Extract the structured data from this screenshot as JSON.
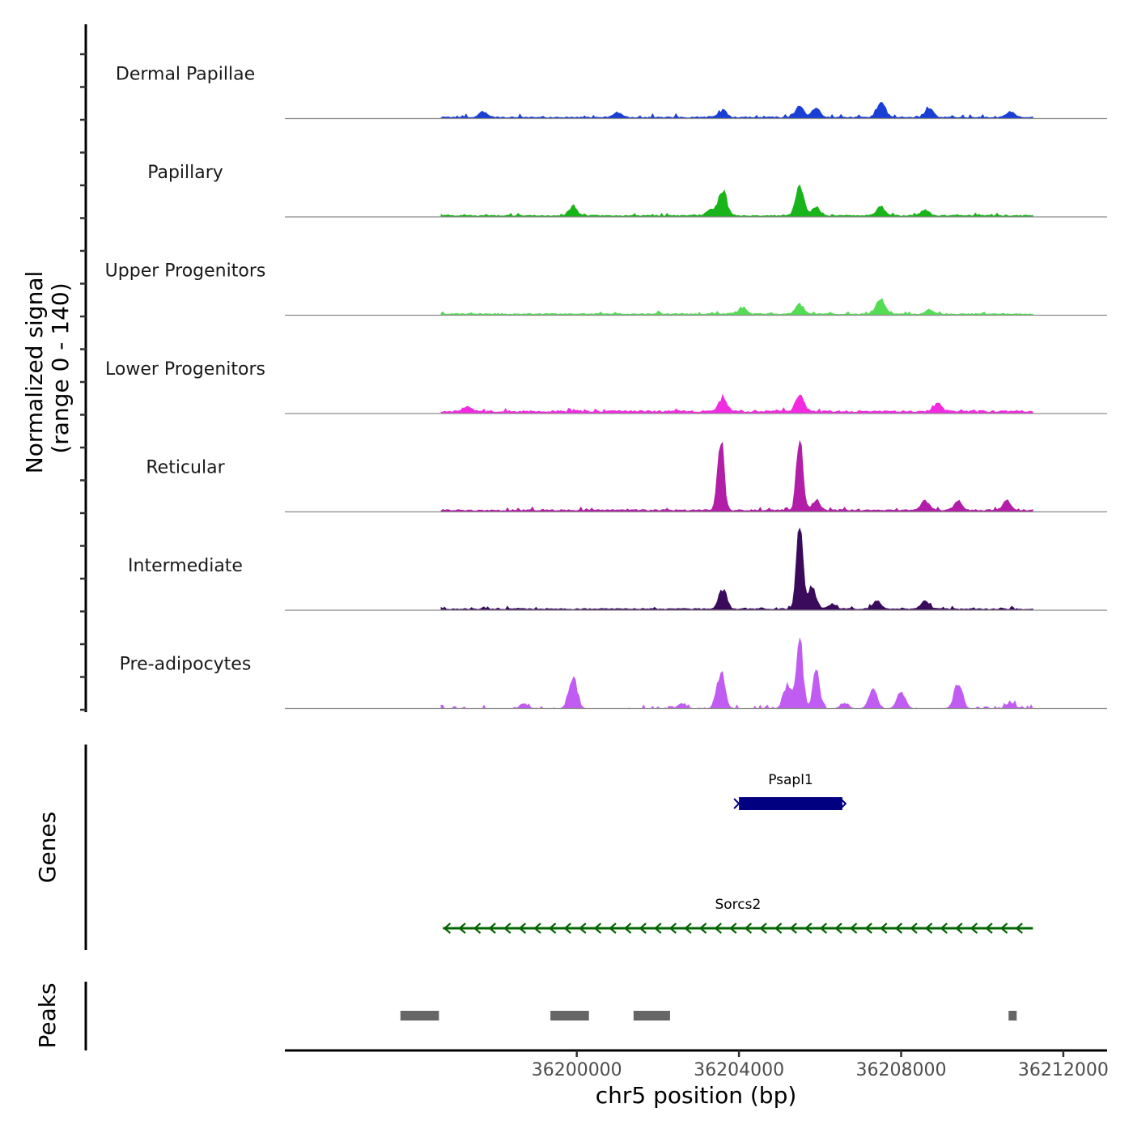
{
  "chart_data": {
    "type": "coverage",
    "coverage_panel": {
      "ylabel_line1": "Normalized signal",
      "ylabel_line2": "(range 0 - 140)",
      "yrange": [
        0,
        140
      ],
      "tracks": [
        {
          "name": "Dermal Papillae",
          "color": "#1a3fd4",
          "peaks": [
            [
              36195800,
              10
            ],
            [
              36197700,
              9
            ],
            [
              36203600,
              11
            ],
            [
              36205500,
              18
            ],
            [
              36205900,
              14
            ],
            [
              36207500,
              22
            ],
            [
              36208700,
              15
            ],
            [
              36201000,
              7
            ],
            [
              36210700,
              8
            ]
          ],
          "baseline": 3,
          "noise": 5
        },
        {
          "name": "Papillary",
          "color": "#19b419",
          "peaks": [
            [
              36199900,
              14
            ],
            [
              36203600,
              40
            ],
            [
              36205500,
              45
            ],
            [
              36205900,
              14
            ],
            [
              36207500,
              15
            ],
            [
              36208600,
              8
            ],
            [
              36203300,
              10
            ]
          ],
          "baseline": 3,
          "noise": 4
        },
        {
          "name": "Upper Progenitors",
          "color": "#55dc55",
          "peaks": [
            [
              36205500,
              15
            ],
            [
              36207500,
              25
            ],
            [
              36204100,
              10
            ],
            [
              36196500,
              6
            ],
            [
              36208700,
              7
            ]
          ],
          "baseline": 3,
          "noise": 4
        },
        {
          "name": "Lower Progenitors",
          "color": "#f22ae0",
          "peaks": [
            [
              36203600,
              22
            ],
            [
              36205500,
              26
            ],
            [
              36196300,
              8
            ],
            [
              36208900,
              12
            ],
            [
              36197300,
              7
            ]
          ],
          "baseline": 5,
          "noise": 5
        },
        {
          "name": "Reticular",
          "color": "#b31ea8",
          "peaks": [
            [
              36203550,
              110
            ],
            [
              36205500,
              118
            ],
            [
              36205900,
              15
            ],
            [
              36208600,
              15
            ],
            [
              36209400,
              14
            ],
            [
              36210600,
              14
            ],
            [
              36196200,
              7
            ]
          ],
          "baseline": 4,
          "noise": 5
        },
        {
          "name": "Intermediate",
          "color": "#3a0a5c",
          "peaks": [
            [
              36203600,
              30
            ],
            [
              36205500,
              138
            ],
            [
              36205800,
              35
            ],
            [
              36207400,
              13
            ],
            [
              36208600,
              14
            ],
            [
              36206300,
              7
            ]
          ],
          "baseline": 3,
          "noise": 4
        },
        {
          "name": "Pre-adipocytes",
          "color": "#c15cf2",
          "peaks": [
            [
              36199900,
              52
            ],
            [
              36203550,
              55
            ],
            [
              36205500,
              110
            ],
            [
              36205900,
              62
            ],
            [
              36205200,
              38
            ],
            [
              36207300,
              30
            ],
            [
              36208000,
              28
            ],
            [
              36209400,
              38
            ],
            [
              36206600,
              8
            ],
            [
              36210700,
              10
            ],
            [
              36202600,
              8
            ],
            [
              36198700,
              7
            ]
          ],
          "baseline": 0,
          "noise": 6,
          "sparse": true
        }
      ]
    },
    "genes_panel": {
      "ylabel": "Genes",
      "genes": [
        {
          "name": "Psapl1",
          "start": 36204000,
          "end": 36206550,
          "strand": "+",
          "color": "#000080",
          "style": "block"
        },
        {
          "name": "Sorcs2",
          "start": 36196700,
          "end": 36211250,
          "strand": "-",
          "color": "#006400",
          "style": "arrows"
        }
      ]
    },
    "peaks_panel": {
      "ylabel": "Peaks",
      "color": "#666666",
      "regions": [
        [
          36195650,
          36196600
        ],
        [
          36199350,
          36200300
        ],
        [
          36201400,
          36202300
        ],
        [
          36210650,
          36210850
        ]
      ]
    },
    "x_axis": {
      "label": "chr5 position (bp)",
      "range": [
        36192800,
        36213080
      ],
      "ticks": [
        36200000,
        36204000,
        36208000,
        36212000
      ],
      "tick_labels": [
        "36200000",
        "36204000",
        "36208000",
        "36212000"
      ]
    }
  }
}
